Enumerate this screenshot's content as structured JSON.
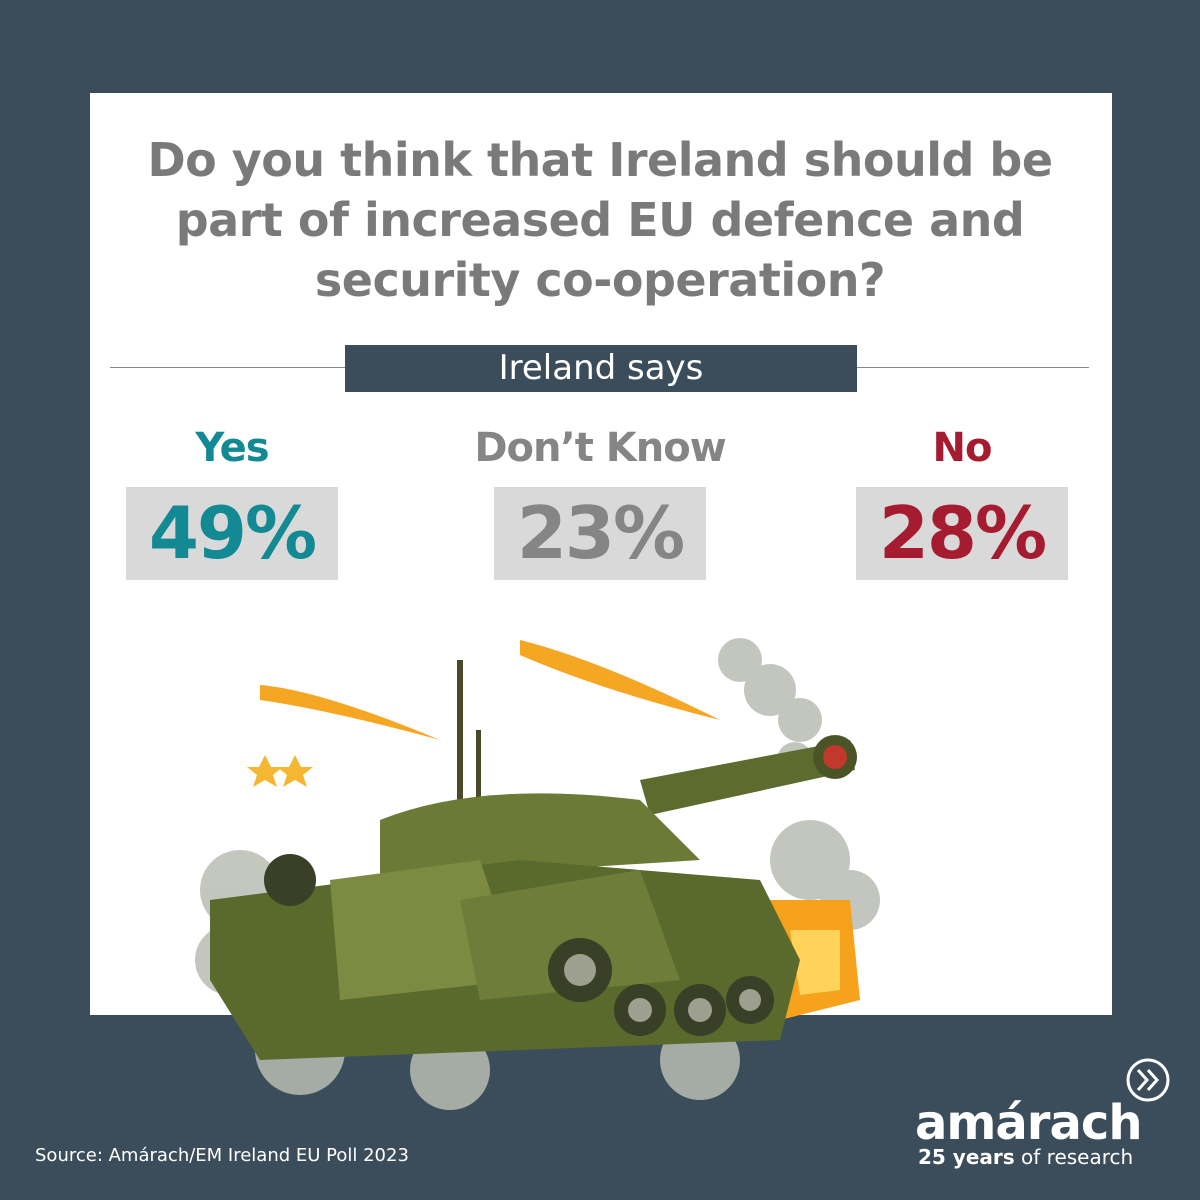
{
  "title_lines": [
    "Do you think that Ireland should be",
    "part of increased EU defence and",
    "security co-operation?"
  ],
  "subtitle": "Ireland says",
  "results": [
    {
      "label": "Yes",
      "value": "49%",
      "color": "#138a93"
    },
    {
      "label": "Don’t Know",
      "value": "23%",
      "color": "#858585"
    },
    {
      "label": "No",
      "value": "28%",
      "color": "#a51c30"
    }
  ],
  "source": "Source: Amárach/EM Ireland EU Poll 2023",
  "brand": {
    "name": "amárach",
    "tagline_bold": "25 years",
    "tagline": "of research"
  }
}
